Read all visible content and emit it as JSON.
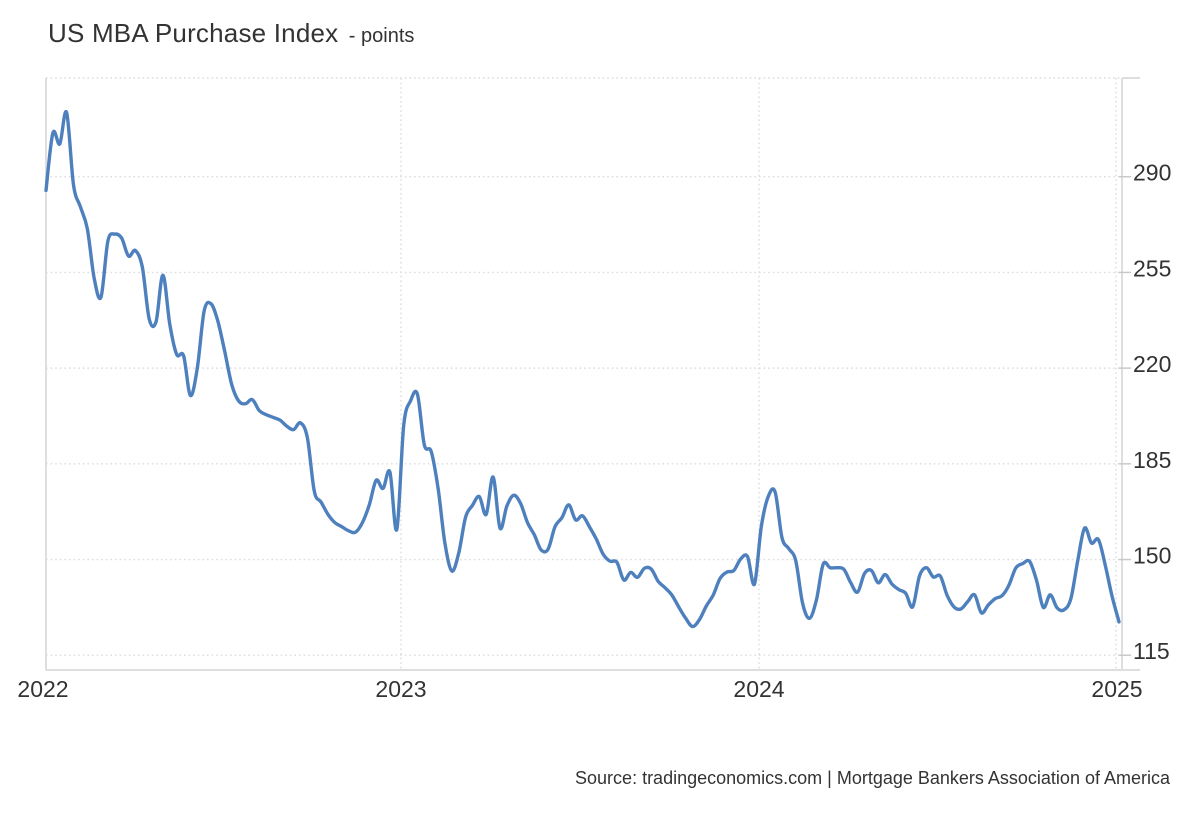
{
  "header": {
    "title": "US MBA Purchase Index",
    "unit_label": "- points"
  },
  "footer": {
    "source": "Source: tradingeconomics.com | Mortgage Bankers Association of America"
  },
  "colors": {
    "line": "#4d80bd",
    "grid": "#dcdcdc",
    "axis": "#dedede",
    "tick": "#c9c9c9",
    "text": "#333333",
    "background": "#ffffff"
  },
  "chart_data": {
    "type": "line",
    "title": "US MBA Purchase Index",
    "ylabel": "points",
    "frequency": "weekly",
    "x_start_date": "2022-01-07",
    "x_end_date": "2025-01-03",
    "x_tick_labels": [
      "2022",
      "2023",
      "2024",
      "2025"
    ],
    "y_tick_labels": [
      290,
      255,
      220,
      185,
      150,
      115
    ],
    "ylim": [
      109.6,
      326.1
    ],
    "grid": "dotted",
    "legend": "none",
    "values": [
      285,
      306,
      302,
      313.5,
      287,
      279,
      271,
      253,
      246,
      266.5,
      269,
      267.5,
      261,
      263,
      257,
      238,
      237,
      254,
      236,
      225,
      224.5,
      210,
      220,
      241,
      243.5,
      237,
      226,
      214,
      208,
      207,
      208.5,
      204.5,
      203,
      202,
      201,
      198.8,
      197.5,
      200,
      194.5,
      175,
      171,
      166.5,
      163.5,
      162,
      160.5,
      160,
      163.5,
      170,
      179,
      176,
      182,
      161,
      199,
      208,
      210.5,
      192,
      189.5,
      176,
      156,
      145.8,
      152.3,
      165.5,
      169.8,
      173,
      166.5,
      180.2,
      161.5,
      169.5,
      173.5,
      170.5,
      163.5,
      159,
      153.5,
      153.8,
      162,
      165.3,
      170,
      164.5,
      166,
      162,
      157.5,
      152,
      149.4,
      149,
      142.5,
      145.3,
      143.5,
      146.8,
      146.5,
      142,
      139.7,
      137,
      132.6,
      128.5,
      125.5,
      128,
      133,
      137,
      143.1,
      145.4,
      146,
      150.2,
      151,
      141,
      162,
      173,
      174.7,
      158,
      154,
      149.6,
      134,
      128.5,
      135.2,
      148.3,
      147,
      147,
      146.4,
      141.5,
      138.1,
      144.9,
      146,
      141.5,
      144.5,
      141,
      139,
      137.6,
      132.7,
      144,
      147,
      143.6,
      144,
      137,
      132.7,
      131.9,
      134.6,
      137.1,
      130.5,
      133.4,
      135.7,
      136.8,
      140.6,
      146.9,
      148.5,
      149.3,
      142.4,
      132.5,
      137.1,
      132.3,
      131.6,
      135.7,
      149.5,
      161.5,
      156,
      157.3,
      148,
      136.5,
      127.2
    ]
  }
}
